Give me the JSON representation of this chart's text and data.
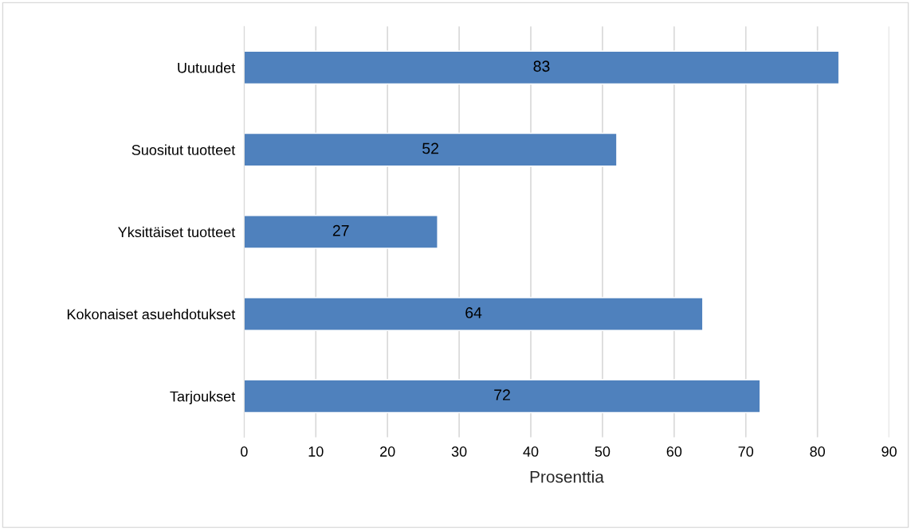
{
  "chart_data": {
    "type": "bar",
    "orientation": "horizontal",
    "xlabel": "Prosenttia",
    "categories": [
      "Uutuudet",
      "Suositut tuotteet",
      "Yksittäiset tuotteet",
      "Kokonaiset asuehdotukset",
      "Tarjoukset"
    ],
    "values": [
      83,
      52,
      27,
      64,
      72
    ],
    "color": "#4f81bd",
    "xlim": [
      0,
      90
    ],
    "xticks": [
      0,
      10,
      20,
      30,
      40,
      50,
      60,
      70,
      80,
      90
    ],
    "grid": "x",
    "data_labels": true
  }
}
